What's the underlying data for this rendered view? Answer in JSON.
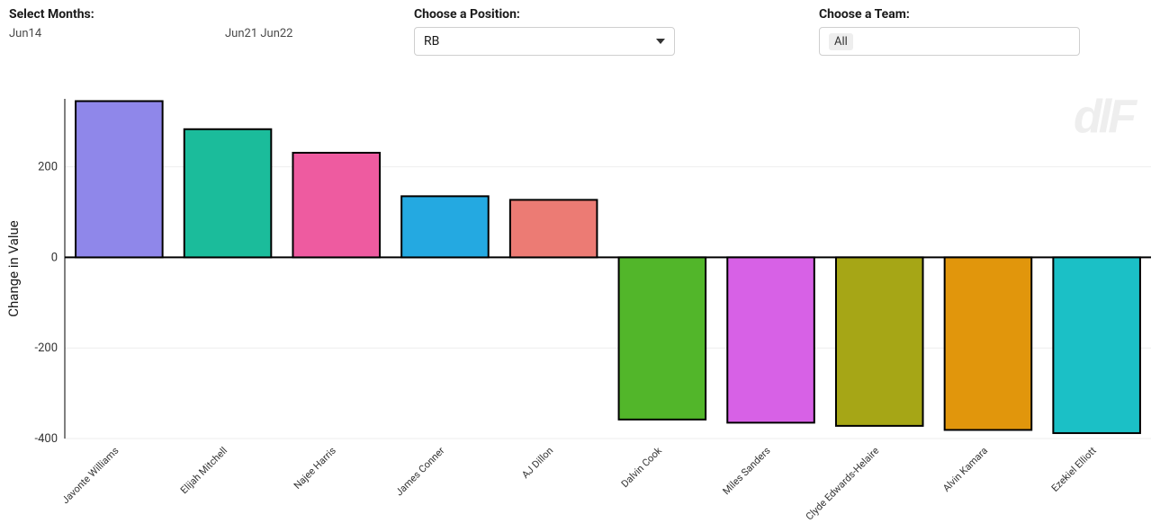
{
  "controls": {
    "months": {
      "label": "Select Months:",
      "left": "Jun14",
      "right": "Jun21 Jun22"
    },
    "position": {
      "label": "Choose a Position:",
      "value": "RB"
    },
    "team": {
      "label": "Choose a Team:",
      "value": "All"
    }
  },
  "chart": {
    "type": "bar",
    "ylabel": "Change in Value",
    "ylabel_fontsize": 15,
    "ylim": [
      -400,
      350
    ],
    "yticks": [
      -400,
      -200,
      0,
      200
    ],
    "grid_color": "#eeeeee",
    "axis_color": "#000000",
    "background_color": "#ffffff",
    "bar_stroke": "#000000",
    "bar_stroke_width": 2,
    "bar_width": 0.8,
    "xlabel_fontsize": 11,
    "xlabel_rotate": -45,
    "watermark": "dlF",
    "categories": [
      "Javonte Williams",
      "Elijah Mitchell",
      "Najee Harris",
      "James Conner",
      "AJ Dillon",
      "Dalvin Cook",
      "Miles Sanders",
      "Clyde Edwards-Helaire",
      "Alvin Kamara",
      "Ezekiel Elliott"
    ],
    "values": [
      345,
      283,
      231,
      135,
      127,
      -358,
      -365,
      -372,
      -381,
      -388
    ],
    "bar_colors": [
      "#8f87ea",
      "#1bbc9b",
      "#ee5ba0",
      "#24a9e1",
      "#ec7b74",
      "#52b62a",
      "#d761e6",
      "#a6a616",
      "#e1960c",
      "#1bc0c6"
    ]
  }
}
